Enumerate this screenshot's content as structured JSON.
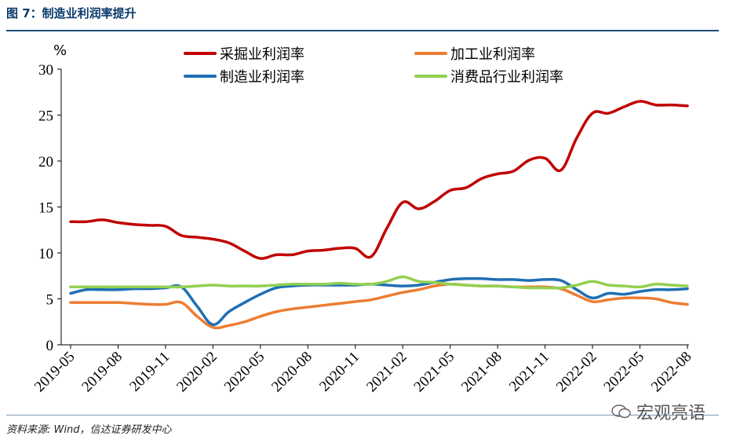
{
  "figure": {
    "title": "图 7：制造业利润率提升",
    "source": "资料来源: Wind，信达证券研发中心",
    "watermark": "宏观亮语"
  },
  "chart_data": {
    "type": "line",
    "ylabel": "%",
    "ylim": [
      0,
      30
    ],
    "yticks": [
      0,
      5,
      10,
      15,
      20,
      25,
      30
    ],
    "x": [
      "2019-05",
      "2019-06",
      "2019-07",
      "2019-08",
      "2019-09",
      "2019-10",
      "2019-11",
      "2019-12",
      "2020-01",
      "2020-02",
      "2020-03",
      "2020-04",
      "2020-05",
      "2020-06",
      "2020-07",
      "2020-08",
      "2020-09",
      "2020-10",
      "2020-11",
      "2020-12",
      "2021-01",
      "2021-02",
      "2021-03",
      "2021-04",
      "2021-05",
      "2021-06",
      "2021-07",
      "2021-08",
      "2021-09",
      "2021-10",
      "2021-11",
      "2021-12",
      "2022-01",
      "2022-02",
      "2022-03",
      "2022-04",
      "2022-05",
      "2022-06",
      "2022-07",
      "2022-08"
    ],
    "xtick_labels": [
      "2019-05",
      "2019-08",
      "2019-11",
      "2020-02",
      "2020-05",
      "2020-08",
      "2020-11",
      "2021-02",
      "2021-05",
      "2021-08",
      "2021-11",
      "2022-02",
      "2022-05",
      "2022-08"
    ],
    "legend_position": "top",
    "grid": false,
    "series": [
      {
        "name": "采掘业利润率",
        "color": "#c00000",
        "values": [
          13.4,
          13.4,
          13.6,
          13.3,
          13.1,
          13.0,
          12.9,
          11.9,
          11.7,
          11.5,
          11.1,
          10.2,
          9.4,
          9.8,
          9.8,
          10.2,
          10.3,
          10.5,
          10.5,
          9.6,
          12.7,
          15.5,
          14.8,
          15.6,
          16.8,
          17.1,
          18.1,
          18.6,
          18.9,
          20.1,
          20.3,
          19.0,
          22.5,
          25.2,
          25.2,
          25.9,
          26.5,
          26.1,
          26.1,
          26.0
        ]
      },
      {
        "name": "加工业利润率",
        "color": "#ed7d31",
        "values": [
          4.6,
          4.6,
          4.6,
          4.6,
          4.5,
          4.4,
          4.4,
          4.6,
          3.1,
          1.9,
          2.1,
          2.5,
          3.1,
          3.6,
          3.9,
          4.1,
          4.3,
          4.5,
          4.7,
          4.9,
          5.3,
          5.7,
          6.0,
          6.4,
          6.6,
          6.5,
          6.4,
          6.4,
          6.3,
          6.3,
          6.3,
          6.1,
          5.4,
          4.7,
          4.9,
          5.1,
          5.1,
          5.0,
          4.6,
          4.4
        ]
      },
      {
        "name": "制造业利润率",
        "color": "#1f6fb4",
        "values": [
          5.6,
          6.0,
          6.0,
          6.0,
          6.1,
          6.1,
          6.2,
          6.3,
          4.2,
          2.2,
          3.6,
          4.6,
          5.5,
          6.2,
          6.4,
          6.5,
          6.5,
          6.5,
          6.5,
          6.6,
          6.5,
          6.4,
          6.5,
          6.8,
          7.1,
          7.2,
          7.2,
          7.1,
          7.1,
          7.0,
          7.1,
          7.0,
          6.0,
          5.1,
          5.6,
          5.5,
          5.8,
          6.0,
          6.0,
          6.1
        ]
      },
      {
        "name": "消费品行业利润率",
        "color": "#92d050",
        "values": [
          6.3,
          6.3,
          6.3,
          6.3,
          6.3,
          6.3,
          6.3,
          6.3,
          6.4,
          6.5,
          6.4,
          6.4,
          6.4,
          6.5,
          6.6,
          6.6,
          6.6,
          6.7,
          6.6,
          6.6,
          6.9,
          7.4,
          6.9,
          6.8,
          6.6,
          6.5,
          6.4,
          6.4,
          6.3,
          6.2,
          6.2,
          6.2,
          6.5,
          6.9,
          6.5,
          6.4,
          6.3,
          6.6,
          6.5,
          6.4
        ]
      }
    ]
  }
}
